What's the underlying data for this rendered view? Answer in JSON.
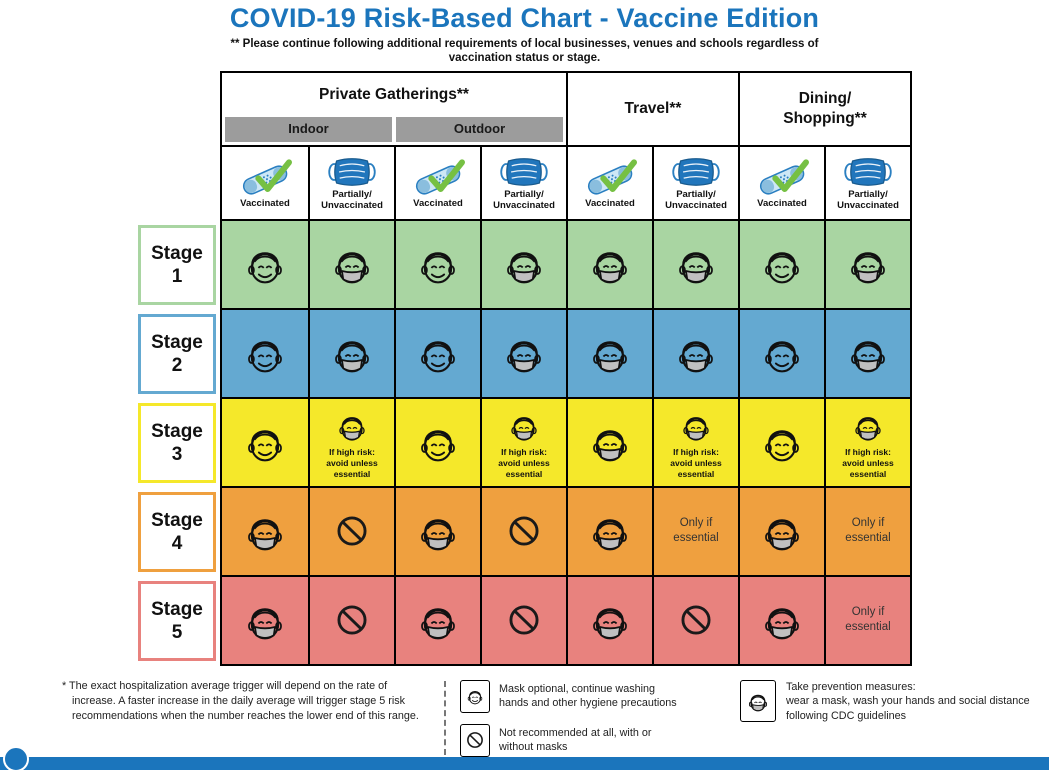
{
  "header": {
    "title": "COVID-19 Risk-Based Chart - Vaccine Edition",
    "subtitle": "** Please continue following additional requirements of local businesses, venues and schools regardless of vaccination status or stage."
  },
  "table": {
    "groups": [
      {
        "label": "Private Gatherings**",
        "subs": [
          "Indoor",
          "Outdoor"
        ]
      },
      {
        "label": "Travel**"
      },
      {
        "label": "Dining/\nShopping**"
      }
    ],
    "columns": [
      {
        "type": "vaccinated",
        "status": "Vaccinated"
      },
      {
        "type": "unvaccinated",
        "status": "Partially/\nUnvaccinated"
      },
      {
        "type": "vaccinated",
        "status": "Vaccinated"
      },
      {
        "type": "unvaccinated",
        "status": "Partially/\nUnvaccinated"
      },
      {
        "type": "vaccinated",
        "status": "Vaccinated"
      },
      {
        "type": "unvaccinated",
        "status": "Partially/\nUnvaccinated"
      },
      {
        "type": "vaccinated",
        "status": "Vaccinated"
      },
      {
        "type": "unvaccinated",
        "status": "Partially/\nUnvaccinated"
      }
    ],
    "cell_text": {
      "high_risk": "If high risk:\navoid unless essential",
      "only_essential": "Only if\nessential"
    },
    "stages": [
      {
        "label": "Stage 1",
        "color": "#a9d5a2",
        "cells": [
          "unmasked",
          "masked",
          "unmasked",
          "masked",
          "masked",
          "masked",
          "unmasked",
          "masked"
        ]
      },
      {
        "label": "Stage 2",
        "color": "#64a9d1",
        "cells": [
          "unmasked",
          "masked",
          "unmasked",
          "masked",
          "masked",
          "masked",
          "unmasked",
          "masked"
        ]
      },
      {
        "label": "Stage 3",
        "color": "#f5e82a",
        "cells": [
          "unmasked",
          "masked-highrisk",
          "unmasked",
          "masked-highrisk",
          "masked",
          "masked-highrisk",
          "unmasked",
          "masked-highrisk"
        ]
      },
      {
        "label": "Stage 4",
        "color": "#efa03f",
        "cells": [
          "masked",
          "prohibited",
          "masked",
          "prohibited",
          "masked",
          "only-essential",
          "masked",
          "only-essential"
        ]
      },
      {
        "label": "Stage 5",
        "color": "#e8827e",
        "cells": [
          "masked",
          "prohibited",
          "masked",
          "prohibited",
          "masked",
          "prohibited",
          "masked",
          "only-essential"
        ]
      }
    ]
  },
  "footer": {
    "footnote": "* The exact hospitalization average trigger will depend on the rate of increase. A faster increase in the daily average will trigger stage 5 risk recommendations when the number reaches the lower end of this range.",
    "legend_middle": [
      {
        "icon": "face-no-mask",
        "text": "Mask optional, continue washing hands and other hygiene precautions"
      },
      {
        "icon": "prohibited",
        "text": "Not recommended at all, with or without masks"
      }
    ],
    "legend_right": {
      "icon": "face-mask",
      "text": "Take prevention measures:\nwear a mask, wash your hands and social distance following CDC guidelines"
    }
  },
  "colors": {
    "title_blue": "#1b75bc",
    "subheader_gray": "#9c9c9c",
    "mask_gray": "#c0c0c0",
    "check_green": "#76c043",
    "bottom_bar_blue": "#1b75bc"
  }
}
